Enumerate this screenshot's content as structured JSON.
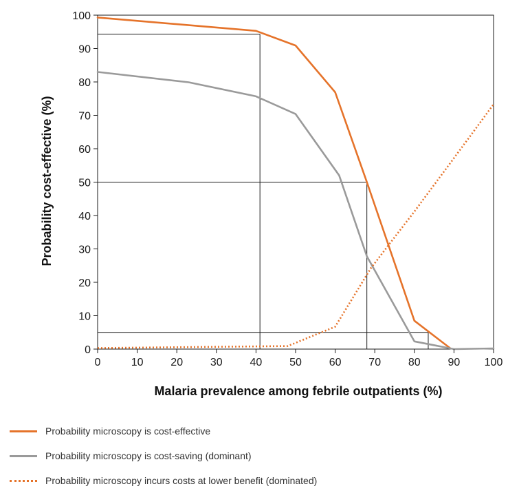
{
  "chart_data": {
    "type": "line",
    "xlabel": "Malaria prevalence among febrile outpatients (%)",
    "ylabel": "Probability cost-effective (%)",
    "xlim": [
      0,
      100
    ],
    "ylim": [
      0,
      100
    ],
    "x_ticks": [
      "0",
      "10",
      "20",
      "30",
      "40",
      "50",
      "60",
      "70",
      "80",
      "90",
      "100"
    ],
    "y_ticks": [
      "0",
      "10",
      "20",
      "30",
      "40",
      "50",
      "60",
      "70",
      "80",
      "90",
      "100"
    ],
    "grid": false,
    "legend_position": "bottom",
    "series": [
      {
        "name": "Probability microscopy is cost-effective",
        "color": "#e5732a",
        "style": "solid",
        "x": [
          0,
          40,
          50,
          60,
          68,
          80,
          89
        ],
        "y": [
          99.3,
          95.3,
          90.9,
          76.9,
          50,
          8.5,
          0.3
        ]
      },
      {
        "name": "Probability microscopy is cost-saving (dominant)",
        "color": "#9a9a9a",
        "style": "solid",
        "x": [
          0,
          23,
          40,
          50,
          61,
          68,
          80,
          90,
          100
        ],
        "y": [
          83,
          79.9,
          75.7,
          70.4,
          52,
          27.8,
          2.3,
          0,
          0.2
        ]
      },
      {
        "name": "Probability microscopy incurs costs at lower benefit (dominated)",
        "color": "#e5732a",
        "style": "dotted",
        "x": [
          0,
          48,
          60,
          69,
          80,
          90,
          100
        ],
        "y": [
          0.3,
          0.9,
          6.7,
          24.2,
          41.2,
          57.2,
          73.3
        ]
      }
    ],
    "reference_lines": [
      {
        "y": 94.3,
        "x": 41
      },
      {
        "y": 50,
        "x": 68
      },
      {
        "y": 5,
        "x": 83.5
      }
    ]
  }
}
